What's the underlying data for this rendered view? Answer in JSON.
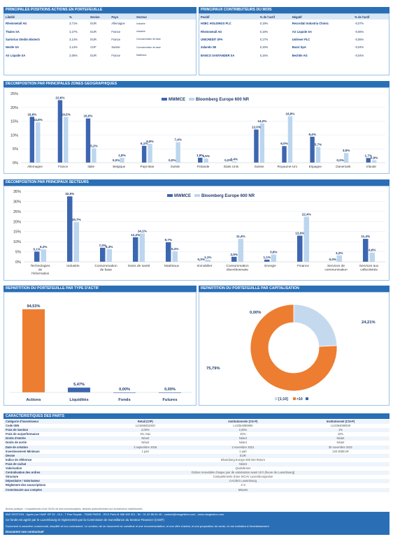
{
  "positions": {
    "title": "PRINCIPALES POSITIONS ACTIONS EN PORTEFEUILLE",
    "headers": [
      "Libellé",
      "%",
      "Devise",
      "Pays",
      "Secteur"
    ],
    "rows": [
      [
        "Rheinmetall AG",
        "3,71%",
        "EUR",
        "Allemagne",
        "Industrie"
      ],
      [
        "Thales SA",
        "3,27%",
        "EUR",
        "France",
        "Industrie"
      ],
      [
        "Sartorius Stedim Biotech",
        "3,14%",
        "EUR",
        "France",
        "Consommation de base"
      ],
      [
        "Nestle SA",
        "3,14%",
        "CHF",
        "Suisse",
        "Consommation de base"
      ],
      [
        "Air Liquide SA",
        "3,06%",
        "EUR",
        "France",
        "Matériaux"
      ]
    ]
  },
  "contributors": {
    "title": "PRINCIPAUX CONTRIBUTEURS DU MOIS",
    "headers": [
      "Positif",
      "% de l'actif",
      "Négatif",
      "% de l'actif"
    ],
    "rows": [
      [
        "HSBC HOLDINGS PLC",
        "0,19%",
        "Recordati Industria Chimic",
        "-0,07%"
      ],
      [
        "Rheinmetall AG",
        "0,18%",
        "Air Liquide SA",
        "-0,06%"
      ],
      [
        "UNICREDIT SPA",
        "0,17%",
        "Unilever PLC",
        "-0,06%"
      ],
      [
        "Zalando SE",
        "0,16%",
        "Buzzi SpA",
        "-0,04%"
      ],
      [
        "BANCO SANTANDER SA",
        "0,16%",
        "Bechtle AG",
        "-0,04%"
      ]
    ]
  },
  "geo_section": {
    "title": "DECOMPOSITION PAR PRINCIPALES ZONES GEOGRAPHIQUES"
  },
  "sector_section": {
    "title": "DECOMPOSITION PAR PRINCIPAUX SECTEURS"
  },
  "asset_section": {
    "title": "REPARTITION DU PORTEFEUILLE PAR TYPE D'ACTIF"
  },
  "cap_section": {
    "title": "REPARTITION DU PORTEFEUILLE PAR CAPITALISATION"
  },
  "colors": {
    "fund": "#3d66b0",
    "bench": "#bcd6ef",
    "orange": "#ed7d31",
    "light": "#c5d9ee",
    "header": "#2a6fb6"
  },
  "chart_data": [
    {
      "type": "bar",
      "series": [
        {
          "name": "MWMCE",
          "values": [
            16.6,
            22.6,
            16.0,
            0.0,
            6.1,
            0.0,
            1.8,
            0.0,
            12.0,
            6.0,
            9.4,
            0.0,
            1.7
          ]
        },
        {
          "name": "Bloomberg Europe 600 NR",
          "values": [
            14.6,
            16.5,
            5.2,
            1.8,
            6.8,
            7.4,
            1.5,
            0.4,
            14.2,
            16.8,
            5.7,
            3.5,
            0.9
          ]
        }
      ],
      "categories": [
        "Allemagne",
        "France",
        "Italie",
        "Belgique",
        "Pays-Bas",
        "Suède",
        "Finlande",
        "Etats Unis",
        "Suisse",
        "Royaume-Uni",
        "Espagne",
        "Danemark",
        "Irlande"
      ],
      "labels_fund": [
        "16,6%",
        "22,6%",
        "16,0%",
        "0,0%",
        "6,1%",
        "0,0%",
        "1,8%",
        "0,0%",
        "12,0%",
        "6,0%",
        "9,4%",
        "0,0%",
        "1,7%"
      ],
      "labels_bench": [
        "14,6%",
        "16,5%",
        "5,2%",
        "1,8%",
        "6,8%",
        "7,4%",
        "1,5%",
        "0,4%",
        "14,2%",
        "16,8%",
        "5,7%",
        "3,5%",
        "0,9%"
      ],
      "yticks": [
        "0%",
        "5%",
        "10%",
        "15%",
        "20%",
        "25%"
      ],
      "ylim": [
        0,
        25
      ]
    },
    {
      "type": "bar",
      "series": [
        {
          "name": "MWMCE",
          "values": [
            5.1,
            32.5,
            7.0,
            12.2,
            9.7,
            0.0,
            2.5,
            1.1,
            13.0,
            0.0,
            11.4
          ]
        },
        {
          "name": "Bloomberg Europe 600 NR",
          "values": [
            6.2,
            19.7,
            6.3,
            14.1,
            5.2,
            1.1,
            11.4,
            3.6,
            22.4,
            3.2,
            4.6
          ]
        }
      ],
      "categories": [
        "Technologies de l'information",
        "Industrie",
        "Consommation de base",
        "Soins de santé",
        "Matériaux",
        "Immobilier",
        "Consommation discrétionnaire",
        "Energie",
        "Finance",
        "Services de communication",
        "Services aux collectivités"
      ],
      "labels_fund": [
        "5,1%",
        "32,5%",
        "7,0%",
        "12,2%",
        "9,7%",
        "0,0%",
        "2,5%",
        "1,1%",
        "13,0%",
        "0,0%",
        "11,4%"
      ],
      "labels_bench": [
        "6,2%",
        "19,7%",
        "6,3%",
        "14,1%",
        "5,2%",
        "1,1%",
        "11,4%",
        "3,6%",
        "22,4%",
        "3,2%",
        "4,6%"
      ],
      "yticks": [
        "0%",
        "5%",
        "10%",
        "15%",
        "20%",
        "25%",
        "30%",
        "35%"
      ],
      "ylim": [
        0,
        35
      ]
    },
    {
      "type": "bar",
      "categories": [
        "Actions",
        "Liquidités",
        "Fonds",
        "Futures"
      ],
      "values": [
        94.53,
        5.47,
        0.0,
        0.0
      ],
      "labels": [
        "94,53%",
        "5,47%",
        "0,00%",
        "0,00%"
      ],
      "ylim": [
        0,
        100
      ]
    },
    {
      "type": "pie",
      "categories": [
        "[1;10]",
        ">10",
        ""
      ],
      "values": [
        24.21,
        75.79,
        0.0
      ],
      "labels": [
        "24,21%",
        "75,79%",
        "0,00%"
      ]
    }
  ],
  "caract": {
    "title": "CARACTERISTIQUES DES PARTS",
    "labels": [
      "Catégorie d'investisseur",
      "Code ISIN",
      "Frais de Gestion",
      "Frais de surperformance",
      "Droits d'entrée",
      "Droits de sortie",
      "Date de création",
      "Investissement Minimum",
      "Devise",
      "Indice de référence",
      "Frais de rachat",
      "Valorisation",
      "Centralisation des ordres",
      "Structure",
      "Dépositaire / Valorisateur",
      "Règlement des souscriptions",
      "Commissaire aux comptes"
    ],
    "col1": [
      "Retail (CIP)",
      "LU1868452340",
      "2,00%",
      "2% max",
      "Néant",
      "Néant",
      "3 septembre 2018",
      "1 part"
    ],
    "col2": [
      "Institutionnels (CG-P)",
      "LU2354080855",
      "2,20%",
      "20%",
      "Néant",
      "Néant",
      "2 novembre 2021",
      "1 part"
    ],
    "col3": [
      "Institutionnel (CSI-P)",
      "LU2354080939",
      "1%",
      "10%",
      "Néant",
      "Néant",
      "30 novembre 2021",
      "125 000EUR"
    ],
    "wide": [
      "EUR",
      "Bloomberg Europe 600 Net Return",
      "Néant",
      "Quotidienne",
      "Ordres recevables chaque jour de valorisation avant 15 h (heure de Luxembourg)",
      "Compartiments d'une SICAV Luxembourgeoise",
      "CACEIS Luxembourg",
      "J+2",
      "Mazars"
    ]
  },
  "footer": {
    "note": "Bureau juridique : Compartiments d'une SICAV de droit luxembourgeois, destinés particulièrement aux investisseurs institutionnels",
    "line1": "MW GESTION - Agrée par l'AMF GP 92 - 014 - 7 Rue Royale - 75008 PARIS - RCS Paris B 388 455 321 -Tel : 01 42 86 54 45 - contact@mwgestion.com - www.mwgestion.com",
    "line2": "Ce fonds est agréé par le Luxembourg et réglementés par la Commission de Surveillance du Secteur Financier (CSSF)",
    "line3": "Document à caractère commercial, simplifié et non contractuel. Le contenu de ce document ne constitue ni une recommandation, ni une offre d'achat, ni une proposition de vente, ni une incitation à l'investissement",
    "line4": "Document non contractuel"
  }
}
